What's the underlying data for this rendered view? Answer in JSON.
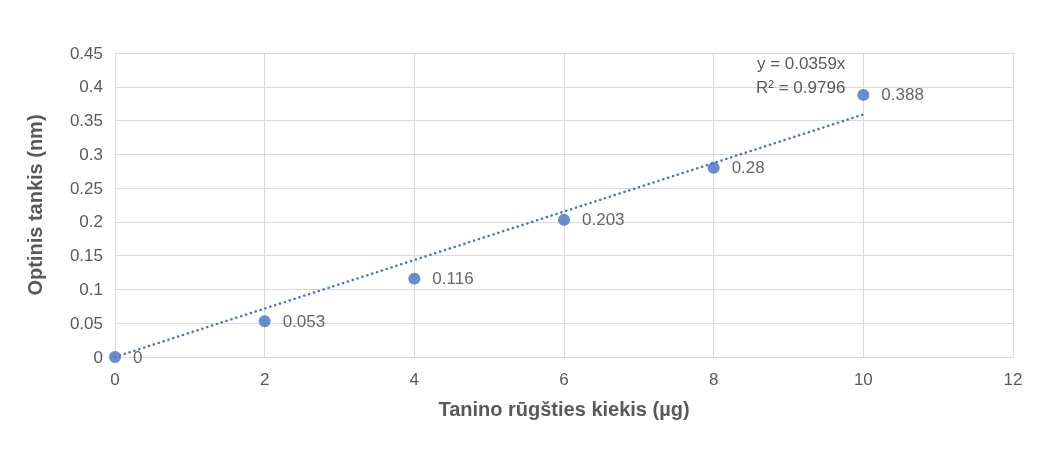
{
  "chart_data": {
    "type": "scatter",
    "xlabel": "Tanino rūgšties kiekis (µg)",
    "ylabel": "Optinis tankis (nm)",
    "x": [
      0,
      2,
      4,
      6,
      8,
      10
    ],
    "series": [
      {
        "color": "#4472c4",
        "values": [
          0,
          0.053,
          0.116,
          0.203,
          0.28,
          0.388
        ],
        "value_labels": [
          "0",
          "0.053",
          "0.116",
          "0.203",
          "0.28",
          "0.388"
        ]
      },
      {
        "type": "line",
        "color": "#4472c4",
        "x": [
          0,
          10
        ],
        "values": [
          0,
          0.359
        ],
        "line_style": "dotted",
        "marker": "none"
      }
    ],
    "xlim": [
      0,
      12
    ],
    "xticks": [
      0,
      2,
      4,
      6,
      8,
      10,
      12
    ],
    "ylim": [
      0,
      0.45
    ],
    "yticks": [
      0,
      0.05,
      0.1,
      0.15,
      0.2,
      0.25,
      0.3,
      0.35,
      0.4,
      0.45
    ],
    "grid": true,
    "marker": "circle",
    "annotations": [
      "y = 0.0359x",
      "R² = 0.9796"
    ]
  }
}
